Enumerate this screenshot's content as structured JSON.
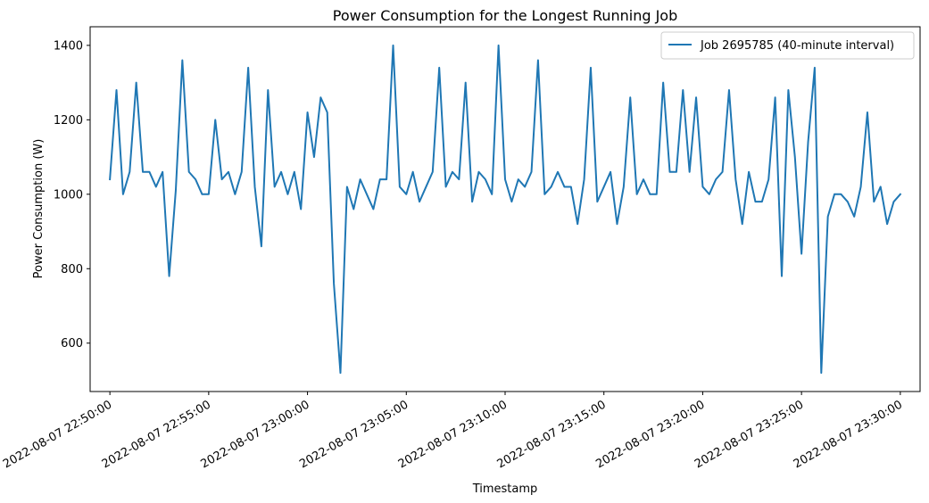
{
  "chart_data": {
    "type": "line",
    "title": "Power Consumption for the Longest Running Job",
    "xlabel": "Timestamp",
    "ylabel": "Power Consumption (W)",
    "xlim": [
      "2022-08-07 22:49:00",
      "2022-08-07 23:31:00"
    ],
    "ylim": [
      470,
      1450
    ],
    "x_ticks": [
      "2022-08-07 22:50:00",
      "2022-08-07 22:55:00",
      "2022-08-07 23:00:00",
      "2022-08-07 23:05:00",
      "2022-08-07 23:10:00",
      "2022-08-07 23:15:00",
      "2022-08-07 23:20:00",
      "2022-08-07 23:25:00",
      "2022-08-07 23:30:00"
    ],
    "y_ticks": [
      600,
      800,
      1000,
      1200,
      1400
    ],
    "legend_position": "top-right",
    "grid": false,
    "colors": {
      "series": "#1f77b4"
    },
    "series": [
      {
        "name": "Job 2695785 (40-minute interval)",
        "x_start": "2022-08-07 22:50:00",
        "x_end": "2022-08-07 23:30:00",
        "values": [
          1040,
          1280,
          1000,
          1060,
          1300,
          1060,
          1060,
          1020,
          1060,
          780,
          1010,
          1360,
          1060,
          1040,
          1000,
          1000,
          1200,
          1040,
          1060,
          1000,
          1060,
          1340,
          1020,
          860,
          1280,
          1020,
          1060,
          1000,
          1060,
          960,
          1220,
          1100,
          1260,
          1220,
          760,
          520,
          1020,
          960,
          1040,
          1000,
          960,
          1040,
          1040,
          1400,
          1020,
          1000,
          1060,
          980,
          1020,
          1060,
          1340,
          1020,
          1060,
          1040,
          1300,
          980,
          1060,
          1040,
          1000,
          1400,
          1040,
          980,
          1040,
          1020,
          1060,
          1360,
          1000,
          1020,
          1060,
          1020,
          1020,
          920,
          1040,
          1340,
          980,
          1020,
          1060,
          920,
          1020,
          1260,
          1000,
          1040,
          1000,
          1000,
          1300,
          1060,
          1060,
          1280,
          1060,
          1260,
          1020,
          1000,
          1040,
          1060,
          1280,
          1040,
          920,
          1060,
          980,
          980,
          1040,
          1260,
          780,
          1280,
          1100,
          840,
          1140,
          1340,
          520,
          940,
          1000,
          1000,
          980,
          940,
          1020,
          1220,
          980,
          1020,
          920,
          980,
          1000
        ]
      }
    ]
  }
}
